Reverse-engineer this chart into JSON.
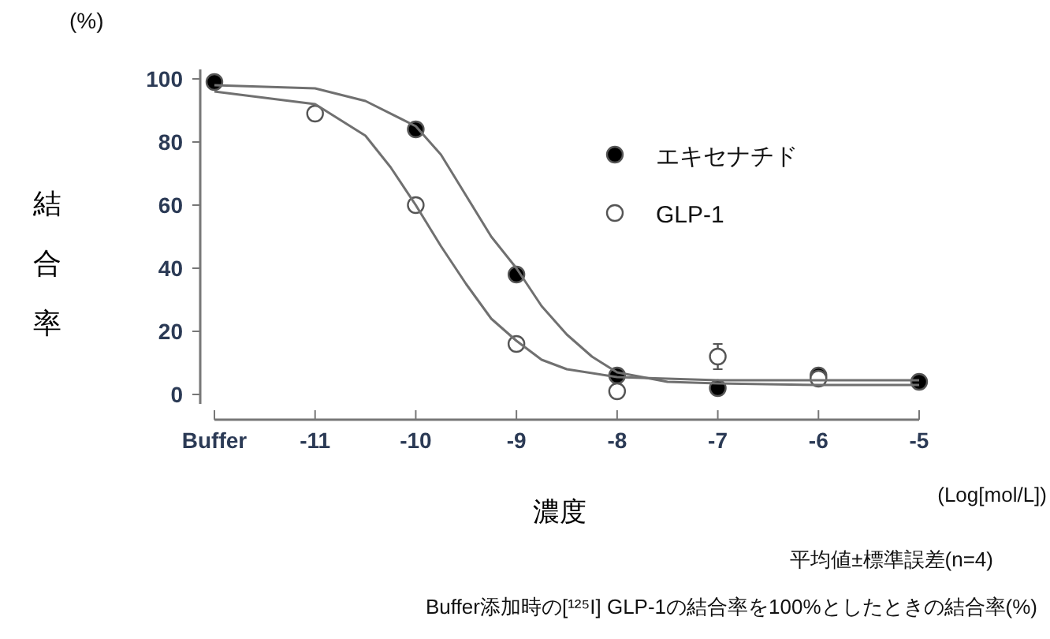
{
  "chart_data": {
    "type": "scatter",
    "xlabel": "濃度",
    "ylabel": "結合率",
    "x": [
      -12,
      -11,
      -10,
      -9,
      -8,
      -7,
      -6,
      -5
    ],
    "series": [
      {
        "name": "エキセナチド",
        "color": "#000000",
        "marker": "circle",
        "values": [
          99,
          null,
          84,
          38,
          6,
          2,
          6,
          4
        ],
        "errors": [
          null,
          null,
          2,
          null,
          null,
          null,
          null,
          null
        ]
      },
      {
        "name": "GLP-1",
        "color": "#ffffff",
        "marker": "circle",
        "values": [
          null,
          89,
          60,
          16,
          1,
          12,
          5,
          null
        ],
        "errors": [
          null,
          null,
          null,
          null,
          null,
          4,
          null,
          null
        ]
      },
      {
        "type": "line",
        "color": "#707070",
        "x": [
          -12,
          -11,
          -10.5,
          -10,
          -9.75,
          -9.5,
          -9.25,
          -9,
          -8.75,
          -8.5,
          -8.25,
          -8,
          -7.5,
          -7,
          -6,
          -5
        ],
        "values": [
          98,
          97,
          93,
          85,
          76,
          63,
          50,
          40,
          28,
          19,
          12,
          7,
          4,
          3.5,
          3,
          3
        ]
      },
      {
        "type": "line",
        "color": "#707070",
        "x": [
          -12,
          -11,
          -10.5,
          -10.25,
          -10,
          -9.75,
          -9.5,
          -9.25,
          -9,
          -8.75,
          -8.5,
          -8,
          -7,
          -6,
          -5
        ],
        "values": [
          96,
          92,
          82,
          72,
          60,
          47,
          35,
          24,
          17,
          11,
          8,
          5.5,
          4.5,
          4.5,
          4.5
        ]
      }
    ],
    "xlim": [
      -12,
      -5
    ],
    "ylim": [
      -3,
      103
    ],
    "xticks": [
      {
        "value": -12,
        "label": "Buffer"
      },
      -11,
      -10,
      -9,
      -8,
      -7,
      -6,
      -5
    ],
    "yticks": [
      0,
      20,
      40,
      60,
      80,
      100
    ],
    "legend": "right",
    "grid": false,
    "annotations": [
      "(%)",
      "(Log[mol/L])",
      "平均値±標準誤差(n=4)",
      "Buffer添加時の[¹²⁵I] GLP-1の結合率を100%としたときの結合率(%)"
    ]
  }
}
